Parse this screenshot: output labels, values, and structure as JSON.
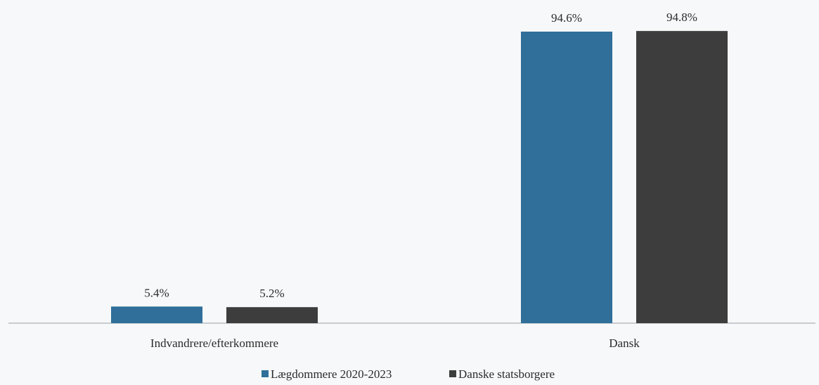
{
  "chart_data": {
    "type": "bar",
    "categories": [
      "Indvandrere/efterkommere",
      "Dansk"
    ],
    "series": [
      {
        "name": "Lægdommere 2020-2023",
        "values": [
          5.4,
          94.6
        ],
        "labels": [
          "5.4%",
          "94.6%"
        ],
        "color": "#2f6f9a"
      },
      {
        "name": "Danske statsborgere",
        "values": [
          5.2,
          94.8
        ],
        "labels": [
          "5.2%",
          "94.8%"
        ],
        "color": "#3d3d3d"
      }
    ],
    "ylim": [
      0,
      100
    ],
    "grid": false,
    "legend": "bottom-center"
  }
}
